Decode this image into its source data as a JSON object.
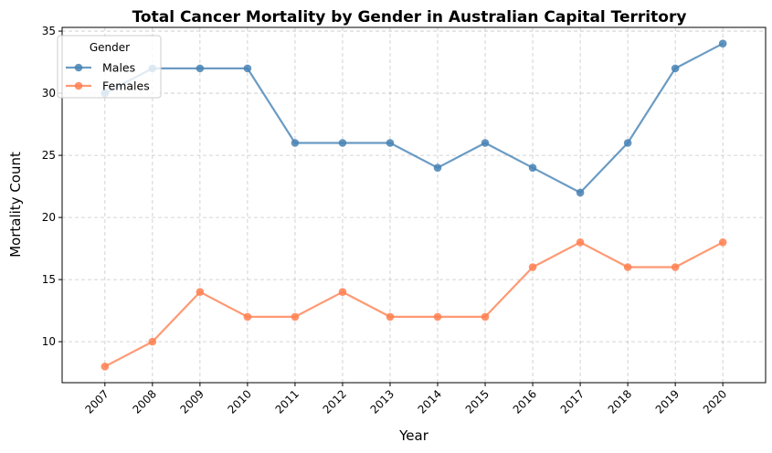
{
  "chart_data": {
    "type": "line",
    "title": "Total Cancer Mortality by Gender in Australian Capital Territory",
    "xlabel": "Year",
    "ylabel": "Mortality Count",
    "x": [
      "2007",
      "2008",
      "2009",
      "2010",
      "2011",
      "2012",
      "2013",
      "2014",
      "2015",
      "2016",
      "2017",
      "2018",
      "2019",
      "2020"
    ],
    "ylim": [
      6.7,
      35.3
    ],
    "yticks": [
      10,
      15,
      20,
      25,
      30,
      35
    ],
    "grid": true,
    "legend": {
      "title": "Gender",
      "placement": "top-left"
    },
    "series": [
      {
        "name": "Males",
        "color": "#4682B4",
        "values": [
          30,
          32,
          32,
          32,
          26,
          26,
          26,
          24,
          26,
          24,
          22,
          26,
          32,
          34
        ]
      },
      {
        "name": "Females",
        "color": "#FF7F50",
        "values": [
          8,
          10,
          14,
          12,
          12,
          14,
          12,
          12,
          12,
          16,
          18,
          16,
          16,
          18
        ]
      }
    ]
  }
}
